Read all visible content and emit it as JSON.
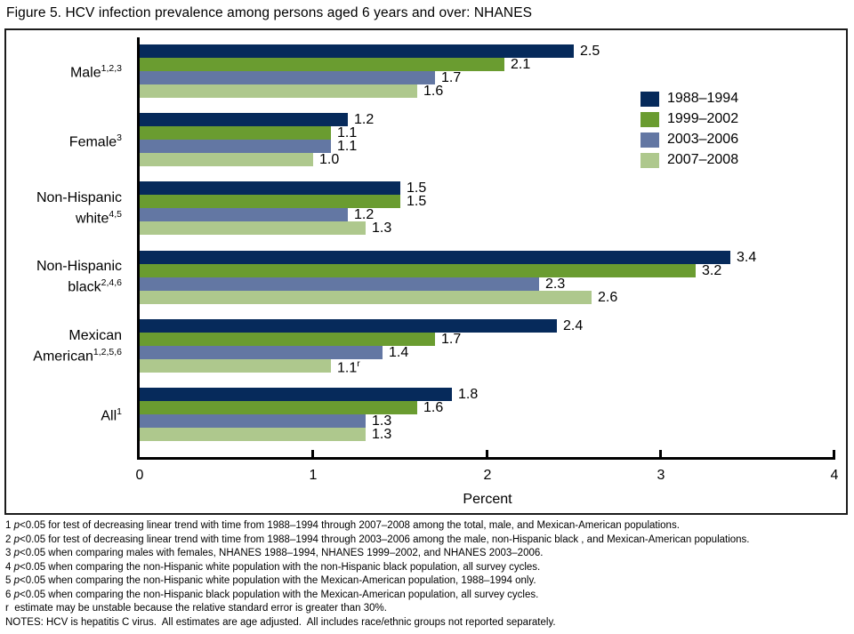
{
  "title": "Figure 5. HCV infection prevalence among persons aged 6 years and over: NHANES",
  "chart_data": {
    "type": "bar",
    "orientation": "horizontal",
    "title": "Figure 5. HCV infection prevalence among persons aged 6 years and over: NHANES",
    "xlabel": "Percent",
    "xlim": [
      0,
      4
    ],
    "xticks": [
      "0",
      "1",
      "2",
      "3",
      "4"
    ],
    "grid": false,
    "legend_position": "inside-right",
    "categories": [
      "Male",
      "Female",
      "Non-Hispanic white",
      "Non-Hispanic black",
      "Mexican American",
      "All"
    ],
    "series": [
      {
        "name": "1988–1994",
        "color": "#062a5b",
        "values": [
          2.5,
          1.2,
          1.5,
          3.4,
          2.4,
          1.8
        ]
      },
      {
        "name": "1999–2002",
        "color": "#6a9c30",
        "values": [
          2.1,
          1.1,
          1.5,
          3.2,
          1.7,
          1.6
        ]
      },
      {
        "name": "2003–2006",
        "color": "#6377a3",
        "values": [
          1.7,
          1.1,
          1.2,
          2.3,
          1.4,
          1.3
        ]
      },
      {
        "name": "2007–2008",
        "color": "#aec88d",
        "values": [
          1.6,
          1.0,
          1.3,
          2.6,
          1.1,
          1.3
        ]
      }
    ],
    "groups": [
      {
        "label_lines": [
          {
            "text": "Male",
            "sup": "1,2,3"
          }
        ]
      },
      {
        "label_lines": [
          {
            "text": "Female",
            "sup": "3"
          }
        ]
      },
      {
        "label_lines": [
          {
            "text": "Non-Hispanic"
          },
          {
            "text": "white",
            "sup": "4,5"
          }
        ]
      },
      {
        "label_lines": [
          {
            "text": "Non-Hispanic"
          },
          {
            "text": "black",
            "sup": "2,4,6"
          }
        ]
      },
      {
        "label_lines": [
          {
            "text": "Mexican"
          },
          {
            "text": "American",
            "sup": "1,2,5,6"
          }
        ]
      },
      {
        "label_lines": [
          {
            "text": "All",
            "sup": "1"
          }
        ]
      }
    ],
    "annotations": [
      {
        "group_index": 4,
        "series_index": 3,
        "superscript": "r"
      }
    ]
  },
  "footnotes": [
    {
      "parts": [
        {
          "t": "1 "
        },
        {
          "t": "p",
          "i": true
        },
        {
          "t": "<0.05 for test of decreasing linear trend with time from 1988–1994 through 2007–2008 among the total, male, and Mexican-American populations."
        }
      ]
    },
    {
      "parts": [
        {
          "t": "2 "
        },
        {
          "t": "p",
          "i": true
        },
        {
          "t": "<0.05 for test of decreasing linear trend with time from 1988–1994 through 2003–2006 among the male, non-Hispanic black , and Mexican-American populations."
        }
      ]
    },
    {
      "parts": [
        {
          "t": "3 "
        },
        {
          "t": "p",
          "i": true
        },
        {
          "t": "<0.05 when comparing males with females, NHANES 1988–1994, NHANES 1999–2002, and NHANES 2003–2006."
        }
      ]
    },
    {
      "parts": [
        {
          "t": "4 "
        },
        {
          "t": "p",
          "i": true
        },
        {
          "t": "<0.05 when comparing the non-Hispanic white population with the non-Hispanic black population, all survey cycles."
        }
      ]
    },
    {
      "parts": [
        {
          "t": "5 "
        },
        {
          "t": "p",
          "i": true
        },
        {
          "t": "<0.05 when comparing the non-Hispanic white population with the Mexican-American population, 1988–1994 only."
        }
      ]
    },
    {
      "parts": [
        {
          "t": "6 "
        },
        {
          "t": "p",
          "i": true
        },
        {
          "t": "<0.05 when comparing the non-Hispanic black population with the Mexican-American population, all survey cycles."
        }
      ]
    },
    {
      "parts": [
        {
          "t": "r  estimate may be unstable because the relative standard error is greater than 30%."
        }
      ]
    },
    {
      "parts": [
        {
          "t": "NOTES: HCV is hepatitis C virus.  All estimates are age adjusted.  All includes race/ethnic groups not reported separately."
        }
      ]
    }
  ]
}
